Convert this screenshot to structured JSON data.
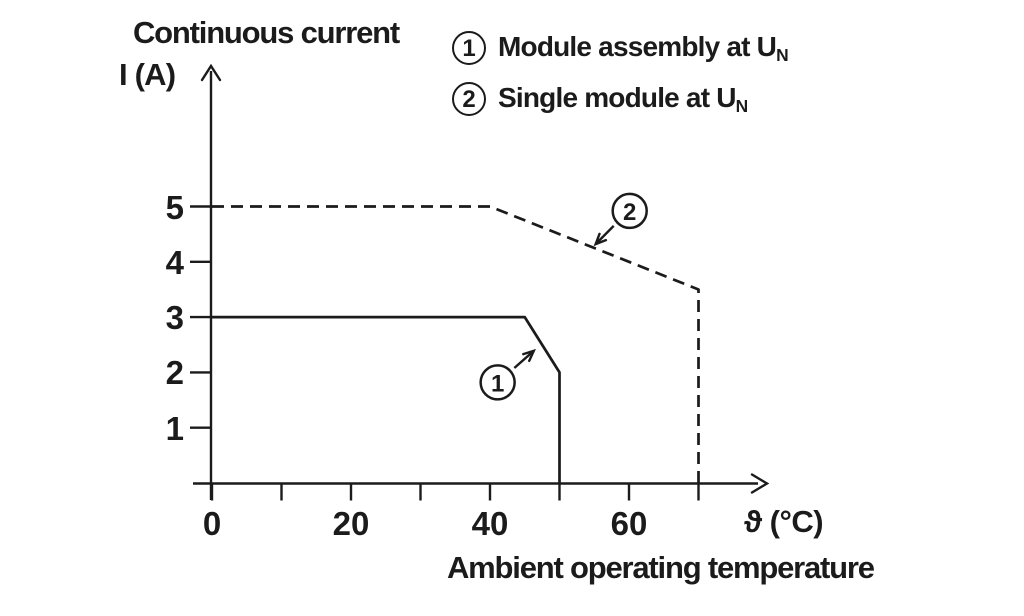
{
  "chart_data": {
    "type": "line",
    "title": "Continuous current",
    "ylabel": "I (A)",
    "xlabel": "ϑ (°C)",
    "xcaption": "Ambient operating temperature",
    "xlim": [
      0,
      80
    ],
    "ylim": [
      0,
      7.5
    ],
    "grid": false,
    "legend_position": "top-right",
    "x_ticks": [
      0,
      10,
      20,
      30,
      40,
      50,
      60,
      70
    ],
    "x_tick_labels": [
      {
        "value": 0,
        "text": "0"
      },
      {
        "value": 20,
        "text": "20"
      },
      {
        "value": 40,
        "text": "40"
      },
      {
        "value": 60,
        "text": "60"
      }
    ],
    "y_ticks": [
      {
        "value": 1,
        "text": "1"
      },
      {
        "value": 2,
        "text": "2"
      },
      {
        "value": 3,
        "text": "3"
      },
      {
        "value": 4,
        "text": "4"
      },
      {
        "value": 5,
        "text": "5"
      }
    ],
    "series": [
      {
        "id": "1",
        "name": "Module assembly at UN",
        "line_style": "solid",
        "points": [
          [
            0,
            3
          ],
          [
            45,
            3
          ],
          [
            50,
            2
          ],
          [
            50,
            0
          ]
        ]
      },
      {
        "id": "2",
        "name": "Single module at UN",
        "line_style": "dashed",
        "points": [
          [
            0,
            5
          ],
          [
            40,
            5
          ],
          [
            70,
            3.5
          ],
          [
            70,
            0
          ]
        ]
      }
    ],
    "annotations": [
      {
        "label": "1",
        "circle_at": [
          41.1,
          1.82
        ],
        "arrow_from": [
          43.5,
          2.08
        ],
        "arrow_to": [
          46.3,
          2.39
        ]
      },
      {
        "label": "2",
        "circle_at": [
          60.1,
          4.92
        ],
        "arrow_from": [
          57.8,
          4.65
        ],
        "arrow_to": [
          55.2,
          4.32
        ]
      }
    ],
    "legend": [
      {
        "num": "1",
        "text": "Module assembly at U",
        "sub": "N"
      },
      {
        "num": "2",
        "text": "Single module at U",
        "sub": "N"
      }
    ],
    "colors": {
      "line": "#1b1b1b",
      "background": "#ffffff"
    }
  }
}
